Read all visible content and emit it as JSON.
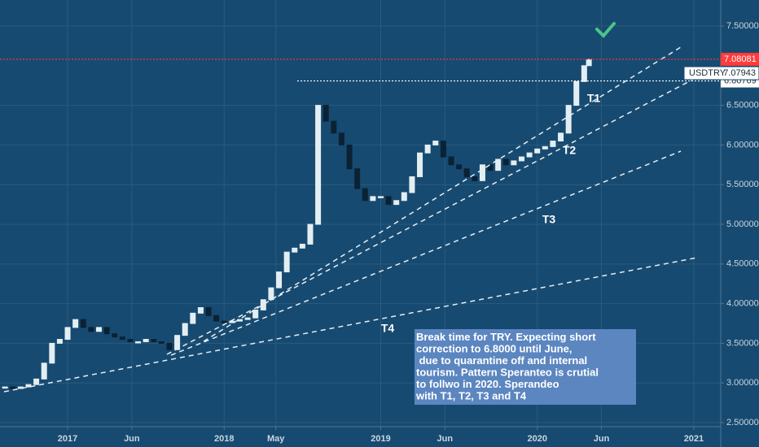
{
  "chart_data": {
    "type": "candlestick",
    "symbol": "USDTRY",
    "x": [
      2016.6,
      2016.65,
      2016.7,
      2016.75,
      2016.8,
      2016.85,
      2016.9,
      2016.95,
      2017.0,
      2017.05,
      2017.1,
      2017.15,
      2017.2,
      2017.25,
      2017.3,
      2017.35,
      2017.4,
      2017.45,
      2017.5,
      2017.55,
      2017.6,
      2017.65,
      2017.7,
      2017.75,
      2017.8,
      2017.85,
      2017.9,
      2017.95,
      2018.0,
      2018.05,
      2018.1,
      2018.15,
      2018.2,
      2018.25,
      2018.3,
      2018.35,
      2018.4,
      2018.45,
      2018.5,
      2018.55,
      2018.6,
      2018.65,
      2018.7,
      2018.75,
      2018.8,
      2018.85,
      2018.9,
      2018.95,
      2019.0,
      2019.05,
      2019.1,
      2019.15,
      2019.2,
      2019.25,
      2019.3,
      2019.35,
      2019.4,
      2019.45,
      2019.5,
      2019.55,
      2019.6,
      2019.65,
      2019.7,
      2019.75,
      2019.8,
      2019.85,
      2019.9,
      2019.95,
      2020.0,
      2020.05,
      2020.1,
      2020.15,
      2020.2,
      2020.25,
      2020.3,
      2020.33
    ],
    "values": [
      2.95,
      2.93,
      2.95,
      2.98,
      3.05,
      3.25,
      3.5,
      3.55,
      3.7,
      3.8,
      3.7,
      3.65,
      3.7,
      3.62,
      3.58,
      3.55,
      3.52,
      3.52,
      3.55,
      3.52,
      3.5,
      3.42,
      3.6,
      3.75,
      3.88,
      3.95,
      3.85,
      3.78,
      3.76,
      3.78,
      3.8,
      3.82,
      3.92,
      4.05,
      4.2,
      4.4,
      4.65,
      4.7,
      4.75,
      5.0,
      6.5,
      6.3,
      6.15,
      6.0,
      5.7,
      5.45,
      5.3,
      5.35,
      5.35,
      5.25,
      5.3,
      5.4,
      5.6,
      5.9,
      6.0,
      6.05,
      5.85,
      5.75,
      5.7,
      5.6,
      5.55,
      5.75,
      5.68,
      5.82,
      5.75,
      5.8,
      5.85,
      5.9,
      5.95,
      5.98,
      6.05,
      6.15,
      6.5,
      6.8,
      7.0,
      7.08
    ],
    "xlim": [
      2016.568,
      2021.172
    ],
    "ylim": [
      2.449,
      7.828
    ],
    "xticks": [
      {
        "value": 2017,
        "label": "2017"
      },
      {
        "value": 2017.41,
        "label": "Jun"
      },
      {
        "value": 2018,
        "label": "2018"
      },
      {
        "value": 2018.33,
        "label": "May"
      },
      {
        "value": 2019,
        "label": "2019"
      },
      {
        "value": 2019.41,
        "label": "Jun"
      },
      {
        "value": 2020,
        "label": "2020"
      },
      {
        "value": 2020.41,
        "label": "Jun"
      },
      {
        "value": 2021,
        "label": "2021"
      }
    ],
    "yticks": [
      {
        "value": 7.5,
        "label": "7.50000"
      },
      {
        "value": 6.5,
        "label": "6.50000"
      },
      {
        "value": 6.0,
        "label": "6.00000"
      },
      {
        "value": 5.5,
        "label": "5.50000"
      },
      {
        "value": 5.0,
        "label": "5.00000"
      },
      {
        "value": 4.5,
        "label": "4.50000"
      },
      {
        "value": 4.0,
        "label": "4.00000"
      },
      {
        "value": 3.5,
        "label": "3.50000"
      },
      {
        "value": 3.0,
        "label": "3.00000"
      },
      {
        "value": 2.5,
        "label": "2.50000"
      }
    ],
    "grid": true,
    "up_color": "#e3eef2",
    "down_color": "#0b2235",
    "price_lines": [
      {
        "value": 7.08081,
        "label": "7.08081",
        "color": "#ff3b3b"
      },
      {
        "value": 6.80769,
        "label": "6.80769",
        "color": "#ffffff"
      }
    ],
    "last_price": {
      "value": 7.07943,
      "label": "7.07943"
    },
    "annotations": [
      "T1",
      "T2",
      "T3",
      "T4"
    ],
    "note": [
      "Break time for TRY. Expecting short",
      "correction to 6.8000 until June,",
      " due to quarantine off and internal",
      "tourism. Pattern Speranteo is crutial",
      "to follwo in 2020. Sperandeo",
      "with T1, T2, T3 and T4"
    ]
  }
}
